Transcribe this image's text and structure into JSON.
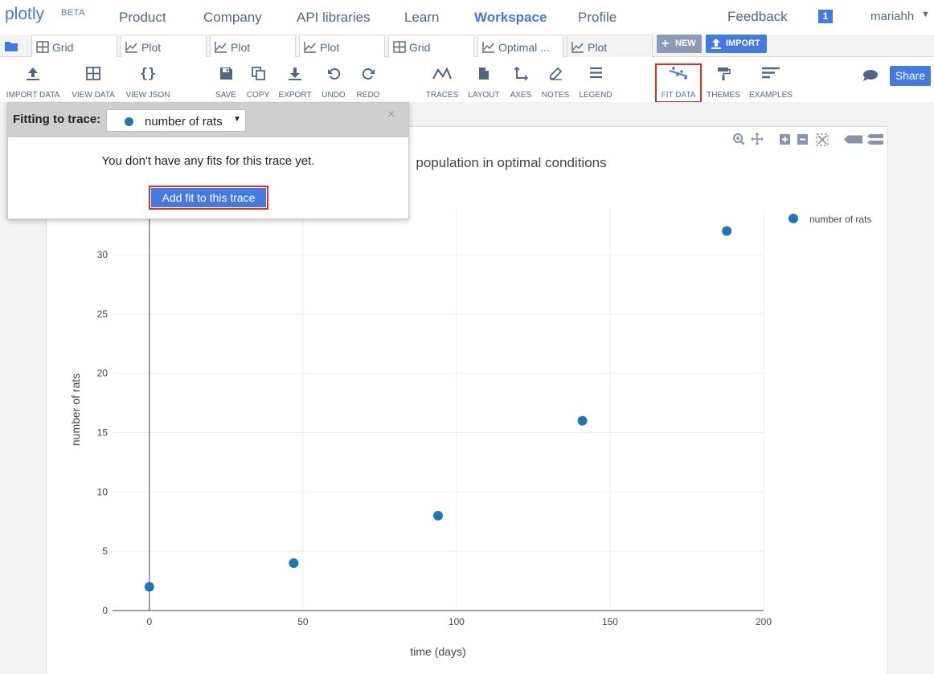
{
  "nav": {
    "logo": "plotly",
    "beta": "BETA",
    "links": [
      "Product",
      "Company",
      "API libraries",
      "Learn",
      "Workspace",
      "Profile"
    ],
    "feedback": "Feedback",
    "notification_count": "1",
    "user": "mariahh"
  },
  "tabs": {
    "items": [
      {
        "label": "Grid",
        "icon": "grid-icon"
      },
      {
        "label": "Plot",
        "icon": "line-chart-icon"
      },
      {
        "label": "Plot",
        "icon": "line-chart-icon"
      },
      {
        "label": "Plot",
        "icon": "line-chart-icon"
      },
      {
        "label": "Grid",
        "icon": "grid-icon"
      },
      {
        "label": "Optimal ...",
        "icon": "line-chart-icon"
      },
      {
        "label": "Plot",
        "icon": "line-chart-icon"
      }
    ],
    "new_label": "NEW",
    "import_label": "IMPORT"
  },
  "toolbar": {
    "import_data": "IMPORT DATA",
    "view_data": "VIEW DATA",
    "view_json": "VIEW JSON",
    "save": "SAVE",
    "copy": "COPY",
    "export": "EXPORT",
    "undo": "UNDO",
    "redo": "REDO",
    "traces": "TRACES",
    "layout": "LAYOUT",
    "axes": "AXES",
    "notes": "NOTES",
    "legend": "LEGEND",
    "fit_data": "FIT DATA",
    "themes": "THEMES",
    "examples": "EXAMPLES",
    "share": "Share"
  },
  "fit_panel": {
    "title": "Fitting to trace:",
    "selected_trace": "number of rats",
    "message": "You don't have any fits for this trace yet.",
    "add_button": "Add fit to this trace",
    "close": "×"
  },
  "colors": {
    "accent": "#447adb",
    "trace": "#1f77b4",
    "highlight": "#e62e1e"
  },
  "chart_data": {
    "type": "scatter",
    "title": "population in optimal conditions",
    "xlabel": "time (days)",
    "ylabel": "number of rats",
    "x_ticks": [
      0,
      50,
      100,
      150,
      200
    ],
    "y_ticks": [
      0,
      5,
      10,
      15,
      20,
      25,
      30
    ],
    "xlim": [
      -12,
      200
    ],
    "ylim": [
      0,
      34
    ],
    "grid": true,
    "legend_placement": "top-right",
    "series": [
      {
        "name": "number of rats",
        "x": [
          0,
          47,
          94,
          141,
          188
        ],
        "y": [
          2,
          4,
          8,
          16,
          32
        ]
      }
    ]
  }
}
